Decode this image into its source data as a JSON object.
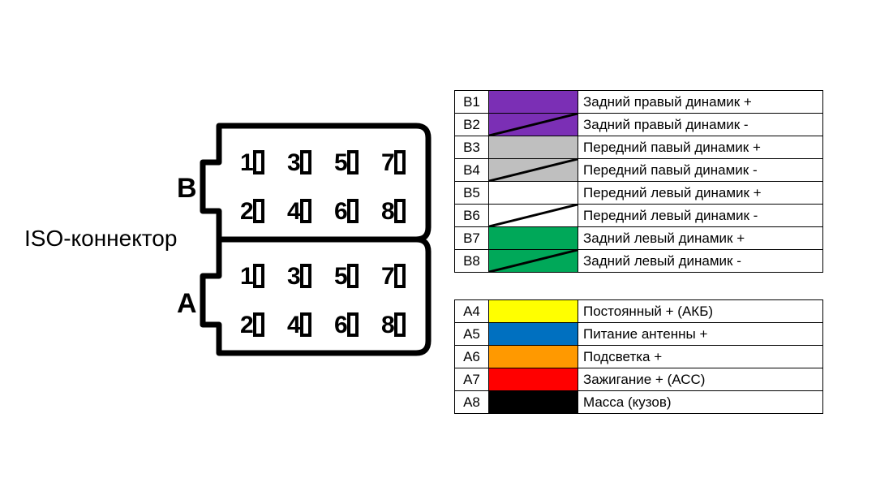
{
  "connector": {
    "title": "ISO-коннектор",
    "row_b_label": "B",
    "row_a_label": "A",
    "pins_top": [
      "1",
      "3",
      "5",
      "7"
    ],
    "pins_bottom": [
      "2",
      "4",
      "6",
      "8"
    ]
  },
  "legend": {
    "groups": [
      {
        "rows": [
          {
            "pin": "B1",
            "color": "#7b2fb5",
            "stripe": false,
            "desc": "Задний правый динамик +"
          },
          {
            "pin": "B2",
            "color": "#7b2fb5",
            "stripe": true,
            "desc": "Задний правый динамик -"
          },
          {
            "pin": "B3",
            "color": "#bfbfbf",
            "stripe": false,
            "desc": "Передний павый динамик +"
          },
          {
            "pin": "B4",
            "color": "#bfbfbf",
            "stripe": true,
            "desc": "Передний павый динамик -"
          },
          {
            "pin": "B5",
            "color": "#ffffff",
            "stripe": false,
            "desc": "Передний левый динамик +"
          },
          {
            "pin": "B6",
            "color": "#ffffff",
            "stripe": true,
            "desc": "Передний левый динамик -"
          },
          {
            "pin": "B7",
            "color": "#00a859",
            "stripe": false,
            "desc": "Задний левый динамик +"
          },
          {
            "pin": "B8",
            "color": "#00a859",
            "stripe": true,
            "desc": "Задний левый динамик -"
          }
        ]
      },
      {
        "rows": [
          {
            "pin": "A4",
            "color": "#ffff00",
            "stripe": false,
            "desc": "Постоянный + (АКБ)"
          },
          {
            "pin": "A5",
            "color": "#0070c0",
            "stripe": false,
            "desc": "Питание антенны +"
          },
          {
            "pin": "A6",
            "color": "#ff9900",
            "stripe": false,
            "desc": "Подсветка +"
          },
          {
            "pin": "A7",
            "color": "#ff0000",
            "stripe": false,
            "desc": "Зажигание + (АСС)"
          },
          {
            "pin": "A8",
            "color": "#000000",
            "stripe": false,
            "desc": "Масса (кузов)"
          }
        ]
      }
    ]
  },
  "styling": {
    "stroke_color": "#000000",
    "stroke_width": 7,
    "pin_font_size": 30,
    "pin_font_weight": 700,
    "background": "#ffffff",
    "table_border_color": "#000000",
    "legend_font_size": 17
  }
}
